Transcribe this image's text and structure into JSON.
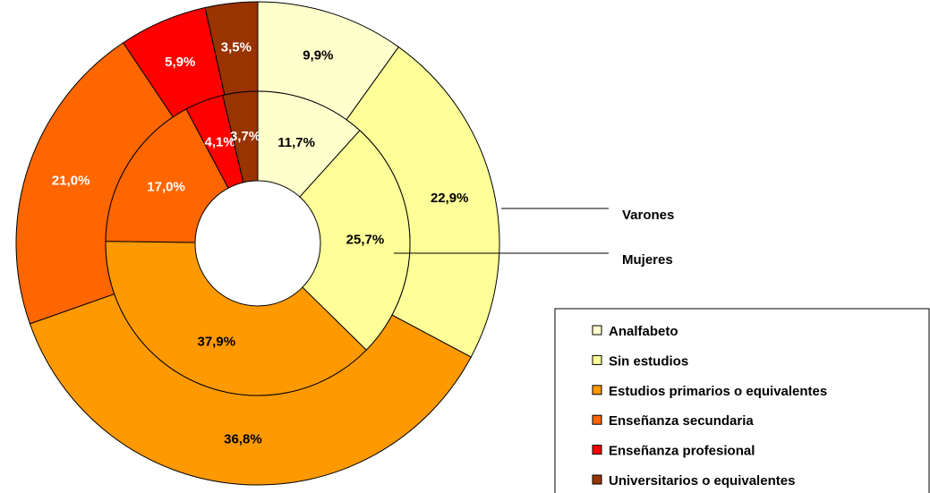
{
  "chart_data": {
    "type": "donut",
    "categories": [
      "Analfabeto",
      "Sin estudios",
      "Estudios primarios o equivalentes",
      "Enseñanza secundaria",
      "Enseñanza profesional",
      "Universitarios o equivalentes"
    ],
    "colors": [
      "#FFFFCC",
      "#FFFF99",
      "#FF9900",
      "#FF6600",
      "#FF0000",
      "#993300"
    ],
    "series": [
      {
        "name": "Varones",
        "values": [
          9.9,
          22.9,
          36.8,
          21.0,
          5.9,
          3.5
        ],
        "value_labels": [
          "9,9%",
          "22,9%",
          "36,8%",
          "21,0%",
          "5,9%",
          "3,5%"
        ]
      },
      {
        "name": "Mujeres",
        "values": [
          11.7,
          25.7,
          37.9,
          17.0,
          4.1,
          3.7
        ],
        "value_labels": [
          "11,7%",
          "25,7%",
          "37,9%",
          "17,0%",
          "4,1%",
          "3,7%"
        ]
      }
    ]
  }
}
